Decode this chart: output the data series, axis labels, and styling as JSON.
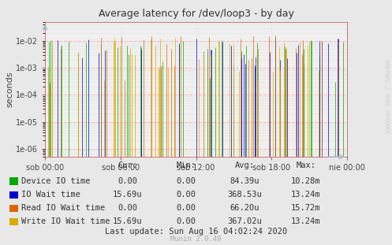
{
  "title": "Average latency for /dev/loop3 - by day",
  "ylabel": "seconds",
  "right_label": "RRDTOOL / TOBI OETIKER",
  "x_tick_labels": [
    "sob 00:00",
    "sob 06:00",
    "sob 12:00",
    "sob 18:00",
    "nie 00:00"
  ],
  "background_color": "#e8e8e8",
  "plot_bg_color": "#f0f0f0",
  "grid_color_major": "#ffbbbb",
  "grid_color_minor": "#cccccc",
  "arrow_color": "#aabbcc",
  "legend": [
    {
      "label": "Device IO time",
      "color": "#00aa00"
    },
    {
      "label": "IO Wait time",
      "color": "#0000cc"
    },
    {
      "label": "Read IO Wait time",
      "color": "#dd6600"
    },
    {
      "label": "Write IO Wait time",
      "color": "#ddaa00"
    }
  ],
  "table_headers": [
    "Cur:",
    "Min:",
    "Avg:",
    "Max:"
  ],
  "table_rows": [
    [
      "Device IO time",
      "0.00",
      "0.00",
      "84.39u",
      "10.28m"
    ],
    [
      "IO Wait time",
      "15.69u",
      "0.00",
      "368.53u",
      "13.24m"
    ],
    [
      "Read IO Wait time",
      "0.00",
      "0.00",
      "66.20u",
      "15.72m"
    ],
    [
      "Write IO Wait time",
      "15.69u",
      "0.00",
      "367.02u",
      "13.24m"
    ]
  ],
  "footer": "Last update: Sun Aug 16 04:02:24 2020",
  "munin_label": "Munin 2.0.49",
  "n_points": 500,
  "seed": 42
}
